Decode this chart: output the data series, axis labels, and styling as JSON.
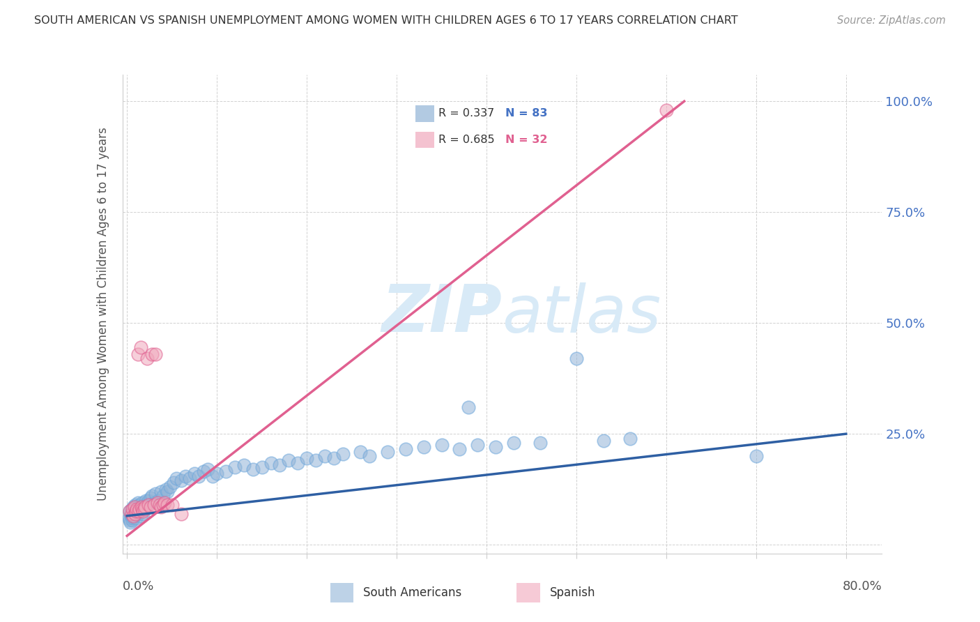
{
  "title": "SOUTH AMERICAN VS SPANISH UNEMPLOYMENT AMONG WOMEN WITH CHILDREN AGES 6 TO 17 YEARS CORRELATION CHART",
  "source": "Source: ZipAtlas.com",
  "ylabel": "Unemployment Among Women with Children Ages 6 to 17 years",
  "blue_color": "#92b4d7",
  "blue_edge_color": "#6fa8dc",
  "pink_color": "#f0a8bc",
  "pink_edge_color": "#e06090",
  "blue_line_color": "#2e5fa3",
  "pink_line_color": "#e06090",
  "watermark_color": "#d8eaf7",
  "right_axis_color": "#4472c4",
  "pink_n_color": "#e06090",
  "xlim_min": -0.005,
  "xlim_max": 0.84,
  "ylim_min": -0.02,
  "ylim_max": 1.06,
  "sa_x": [
    0.002,
    0.003,
    0.003,
    0.004,
    0.004,
    0.005,
    0.005,
    0.006,
    0.006,
    0.007,
    0.007,
    0.008,
    0.008,
    0.009,
    0.009,
    0.01,
    0.01,
    0.011,
    0.012,
    0.012,
    0.013,
    0.014,
    0.015,
    0.015,
    0.016,
    0.017,
    0.018,
    0.019,
    0.02,
    0.021,
    0.022,
    0.024,
    0.026,
    0.028,
    0.03,
    0.032,
    0.035,
    0.038,
    0.04,
    0.043,
    0.045,
    0.048,
    0.052,
    0.055,
    0.06,
    0.065,
    0.07,
    0.075,
    0.08,
    0.085,
    0.09,
    0.095,
    0.1,
    0.11,
    0.12,
    0.13,
    0.14,
    0.15,
    0.16,
    0.17,
    0.18,
    0.19,
    0.2,
    0.21,
    0.22,
    0.23,
    0.24,
    0.26,
    0.27,
    0.29,
    0.31,
    0.33,
    0.35,
    0.37,
    0.39,
    0.41,
    0.43,
    0.46,
    0.5,
    0.53,
    0.56,
    0.7,
    0.38
  ],
  "sa_y": [
    0.06,
    0.055,
    0.075,
    0.05,
    0.07,
    0.065,
    0.08,
    0.055,
    0.075,
    0.06,
    0.085,
    0.065,
    0.08,
    0.07,
    0.09,
    0.06,
    0.085,
    0.08,
    0.07,
    0.095,
    0.075,
    0.09,
    0.065,
    0.085,
    0.08,
    0.095,
    0.07,
    0.09,
    0.085,
    0.1,
    0.09,
    0.1,
    0.105,
    0.11,
    0.095,
    0.115,
    0.1,
    0.12,
    0.11,
    0.125,
    0.12,
    0.13,
    0.14,
    0.15,
    0.145,
    0.155,
    0.15,
    0.16,
    0.155,
    0.165,
    0.17,
    0.155,
    0.16,
    0.165,
    0.175,
    0.18,
    0.17,
    0.175,
    0.185,
    0.18,
    0.19,
    0.185,
    0.195,
    0.19,
    0.2,
    0.195,
    0.205,
    0.21,
    0.2,
    0.21,
    0.215,
    0.22,
    0.225,
    0.215,
    0.225,
    0.22,
    0.23,
    0.23,
    0.42,
    0.235,
    0.24,
    0.2,
    0.31
  ],
  "sp_x": [
    0.003,
    0.005,
    0.006,
    0.007,
    0.008,
    0.009,
    0.01,
    0.011,
    0.012,
    0.013,
    0.014,
    0.015,
    0.016,
    0.017,
    0.018,
    0.019,
    0.02,
    0.022,
    0.024,
    0.026,
    0.028,
    0.03,
    0.032,
    0.034,
    0.036,
    0.038,
    0.04,
    0.042,
    0.045,
    0.05,
    0.06,
    0.6
  ],
  "sp_y": [
    0.075,
    0.07,
    0.08,
    0.065,
    0.085,
    0.07,
    0.075,
    0.08,
    0.43,
    0.075,
    0.08,
    0.445,
    0.085,
    0.08,
    0.075,
    0.08,
    0.085,
    0.42,
    0.09,
    0.085,
    0.43,
    0.09,
    0.43,
    0.095,
    0.09,
    0.085,
    0.09,
    0.095,
    0.09,
    0.09,
    0.07,
    0.98
  ],
  "sa_line_x": [
    0.0,
    0.8
  ],
  "sa_line_y": [
    0.065,
    0.25
  ],
  "sp_line_x": [
    0.0,
    0.62
  ],
  "sp_line_y": [
    0.02,
    1.0
  ],
  "yticks": [
    0.0,
    0.25,
    0.5,
    0.75,
    1.0
  ],
  "ytick_labels": [
    "",
    "25.0%",
    "50.0%",
    "75.0%",
    "100.0%"
  ],
  "xtick_positions": [
    0.0,
    0.1,
    0.2,
    0.3,
    0.4,
    0.5,
    0.6,
    0.7,
    0.8
  ],
  "grid_color": "#cccccc",
  "marker_size": 180
}
